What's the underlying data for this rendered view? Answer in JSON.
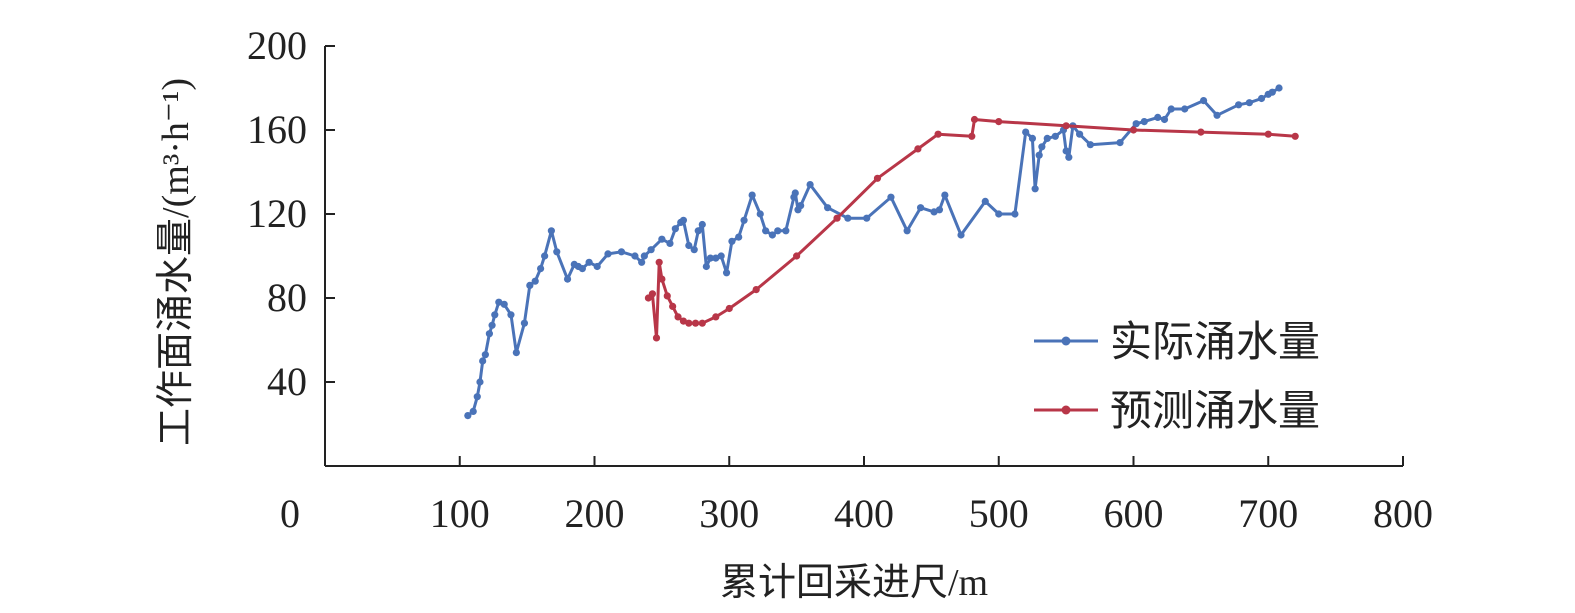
{
  "chart_data": {
    "type": "line",
    "title": "",
    "xlabel": "累计回采进尺/m",
    "ylabel": "工作面涌水量/(m³·h⁻¹)",
    "xlim": [
      0,
      800
    ],
    "ylim": [
      0,
      200
    ],
    "x_ticks": [
      "0",
      "100",
      "200",
      "300",
      "400",
      "500",
      "600",
      "700",
      "800"
    ],
    "y_ticks": [
      "40",
      "80",
      "120",
      "160",
      "200"
    ],
    "grid": false,
    "legend_position": "right-middle",
    "series": [
      {
        "name": "实际涌水量",
        "color": "#4a73b8",
        "x": [
          106,
          110,
          113,
          115,
          117,
          119,
          122,
          124,
          126,
          129,
          133,
          138,
          142,
          148,
          152,
          156,
          160,
          163,
          168,
          172,
          180,
          185,
          188,
          191,
          196,
          202,
          210,
          220,
          230,
          235,
          237,
          242,
          250,
          256,
          260,
          264,
          266,
          270,
          274,
          277,
          280,
          283,
          286,
          290,
          294,
          298,
          302,
          307,
          311,
          317,
          323,
          327,
          332,
          336,
          342,
          348,
          349,
          351,
          353,
          360,
          373,
          388,
          402,
          420,
          432,
          442,
          452,
          456,
          460,
          472,
          490,
          500,
          512,
          520,
          525,
          527,
          530,
          532,
          536,
          542,
          548,
          550,
          552,
          555,
          560,
          568,
          590,
          602,
          608,
          618,
          623,
          628,
          638,
          652,
          662,
          678,
          686,
          695,
          700,
          703,
          708
        ],
        "y": [
          24,
          26,
          33,
          40,
          50,
          53,
          63,
          67,
          72,
          78,
          77,
          72,
          54,
          68,
          86,
          88,
          94,
          100,
          112,
          102,
          89,
          96,
          95,
          94,
          97,
          95,
          101,
          102,
          100,
          97,
          100,
          103,
          108,
          106,
          113,
          116,
          117,
          105,
          103,
          112,
          115,
          95,
          99,
          99,
          100,
          92,
          107,
          109,
          117,
          129,
          120,
          112,
          110,
          112,
          112,
          128,
          130,
          122,
          124,
          134,
          123,
          118,
          118,
          128,
          112,
          123,
          121,
          122,
          129,
          110,
          126,
          120,
          120,
          159,
          156,
          132,
          148,
          152,
          156,
          157,
          160,
          150,
          147,
          162,
          158,
          153,
          154,
          163,
          164,
          166,
          165,
          170,
          170,
          174,
          167,
          172,
          173,
          175,
          177,
          178,
          180
        ]
      },
      {
        "name": "预测涌水量",
        "color": "#b83648",
        "x": [
          240,
          243,
          246,
          248,
          250,
          254,
          258,
          262,
          266,
          270,
          275,
          280,
          290,
          300,
          320,
          350,
          380,
          410,
          440,
          455,
          480,
          482,
          500,
          550,
          600,
          650,
          700,
          720
        ],
        "y": [
          80,
          82,
          61,
          97,
          89,
          81,
          76,
          71,
          69,
          68,
          68,
          68,
          71,
          75,
          84,
          100,
          118,
          137,
          151,
          158,
          157,
          165,
          164,
          162,
          160,
          159,
          158,
          157
        ]
      }
    ]
  }
}
